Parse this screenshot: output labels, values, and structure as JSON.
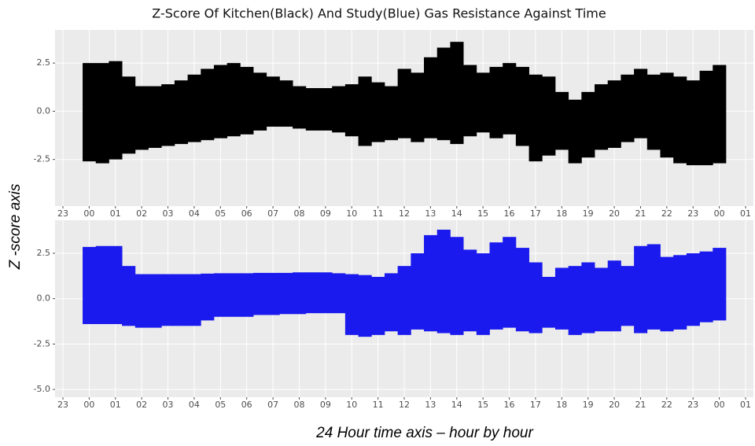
{
  "title": "Z-Score Of Kitchen(Black) And Study(Blue) Gas Resistance Against Time",
  "ylabel": "Z -score axis",
  "xlabel": "24 Hour time axis – hour by hour",
  "chart_data": [
    {
      "type": "range",
      "grid": true,
      "background": "#ebebeb",
      "x": [
        0,
        0.5,
        1,
        1.5,
        2,
        2.5,
        3,
        3.5,
        4,
        4.5,
        5,
        5.5,
        6,
        6.5,
        7,
        7.5,
        8,
        8.5,
        9,
        9.5,
        10,
        10.5,
        11,
        11.5,
        12,
        12.5,
        13,
        13.5,
        14,
        14.5,
        15,
        15.5,
        16,
        16.5,
        17,
        17.5,
        18,
        18.5,
        19,
        19.5,
        20,
        20.5,
        21,
        21.5,
        22,
        22.5,
        23,
        23.5,
        24
      ],
      "series": [
        {
          "color": "#000000",
          "values": [
            2.5,
            2.5,
            2.6,
            1.8,
            1.3,
            1.3,
            1.4,
            1.6,
            1.9,
            2.2,
            2.4,
            2.5,
            2.3,
            2.0,
            1.8,
            1.6,
            1.3,
            1.2,
            1.2,
            1.3,
            1.4,
            1.8,
            1.5,
            1.3,
            2.2,
            2.0,
            2.8,
            3.3,
            3.6,
            2.4,
            2.0,
            2.3,
            2.5,
            2.3,
            1.9,
            1.8,
            1.0,
            0.6,
            1.0,
            1.4,
            1.6,
            1.9,
            2.2,
            1.9,
            2.0,
            1.8,
            1.6,
            2.1,
            2.4
          ]
        },
        {
          "color": "#000000",
          "values": [
            -2.6,
            -2.7,
            -2.5,
            -2.2,
            -2.0,
            -1.9,
            -1.8,
            -1.7,
            -1.6,
            -1.5,
            -1.4,
            -1.3,
            -1.2,
            -1.0,
            -0.8,
            -0.8,
            -0.9,
            -1.0,
            -1.0,
            -1.1,
            -1.3,
            -1.8,
            -1.6,
            -1.5,
            -1.4,
            -1.6,
            -1.4,
            -1.5,
            -1.7,
            -1.3,
            -1.1,
            -1.4,
            -1.2,
            -1.8,
            -2.6,
            -2.3,
            -2.0,
            -2.7,
            -2.4,
            -2.0,
            -1.9,
            -1.6,
            -1.4,
            -2.0,
            -2.4,
            -2.7,
            -2.8,
            -2.8,
            -2.7
          ]
        }
      ],
      "xlim": [
        -1.3,
        25.3
      ],
      "xticks": [
        {
          "value": -1,
          "label": "23"
        },
        {
          "value": 0,
          "label": "00"
        },
        {
          "value": 1,
          "label": "01"
        },
        {
          "value": 2,
          "label": "02"
        },
        {
          "value": 3,
          "label": "03"
        },
        {
          "value": 4,
          "label": "04"
        },
        {
          "value": 5,
          "label": "05"
        },
        {
          "value": 6,
          "label": "06"
        },
        {
          "value": 7,
          "label": "07"
        },
        {
          "value": 8,
          "label": "08"
        },
        {
          "value": 9,
          "label": "09"
        },
        {
          "value": 10,
          "label": "10"
        },
        {
          "value": 11,
          "label": "11"
        },
        {
          "value": 12,
          "label": "12"
        },
        {
          "value": 13,
          "label": "13"
        },
        {
          "value": 14,
          "label": "14"
        },
        {
          "value": 15,
          "label": "15"
        },
        {
          "value": 16,
          "label": "16"
        },
        {
          "value": 17,
          "label": "17"
        },
        {
          "value": 18,
          "label": "18"
        },
        {
          "value": 19,
          "label": "19"
        },
        {
          "value": 20,
          "label": "20"
        },
        {
          "value": 21,
          "label": "21"
        },
        {
          "value": 22,
          "label": "22"
        },
        {
          "value": 23,
          "label": "23"
        },
        {
          "value": 24,
          "label": "00"
        },
        {
          "value": 25,
          "label": "01"
        }
      ],
      "ylim": [
        -4.92,
        4.22
      ],
      "yticks": [
        2.5,
        {
          "value": 0,
          "label": "0.0"
        },
        -2.5
      ]
    },
    {
      "type": "range",
      "grid": true,
      "background": "#ebebeb",
      "x": [
        0,
        0.5,
        1,
        1.5,
        2,
        2.5,
        3,
        3.5,
        4,
        4.5,
        5,
        5.5,
        6,
        6.5,
        7,
        7.5,
        8,
        8.5,
        9,
        9.5,
        10,
        10.5,
        11,
        11.5,
        12,
        12.5,
        13,
        13.5,
        14,
        14.5,
        15,
        15.5,
        16,
        16.5,
        17,
        17.5,
        18,
        18.5,
        19,
        19.5,
        20,
        20.5,
        21,
        21.5,
        22,
        22.5,
        23,
        23.5,
        24
      ],
      "series": [
        {
          "color": "#1a1aee",
          "values": [
            2.85,
            2.9,
            2.9,
            1.8,
            1.35,
            1.35,
            1.35,
            1.35,
            1.35,
            1.38,
            1.4,
            1.4,
            1.4,
            1.42,
            1.42,
            1.42,
            1.45,
            1.45,
            1.45,
            1.4,
            1.35,
            1.3,
            1.2,
            1.4,
            1.8,
            2.5,
            3.5,
            3.8,
            3.4,
            2.7,
            2.5,
            3.1,
            3.4,
            2.8,
            2.0,
            1.2,
            1.7,
            1.8,
            2.0,
            1.7,
            2.1,
            1.8,
            2.9,
            3.0,
            2.3,
            2.4,
            2.5,
            2.6,
            2.8
          ]
        },
        {
          "color": "#1a1aee",
          "values": [
            -1.4,
            -1.4,
            -1.4,
            -1.5,
            -1.6,
            -1.6,
            -1.5,
            -1.5,
            -1.5,
            -1.2,
            -1.0,
            -1.0,
            -1.0,
            -0.9,
            -0.9,
            -0.85,
            -0.85,
            -0.8,
            -0.8,
            -0.8,
            -2.0,
            -2.1,
            -2.0,
            -1.8,
            -2.0,
            -1.7,
            -1.8,
            -1.9,
            -2.0,
            -1.8,
            -2.0,
            -1.7,
            -1.6,
            -1.8,
            -1.9,
            -1.6,
            -1.7,
            -2.0,
            -1.9,
            -1.8,
            -1.8,
            -1.5,
            -1.9,
            -1.7,
            -1.8,
            -1.7,
            -1.5,
            -1.3,
            -1.2
          ]
        }
      ],
      "xlim": [
        -1.3,
        25.3
      ],
      "xticks": [
        {
          "value": -1,
          "label": "23"
        },
        {
          "value": 0,
          "label": "00"
        },
        {
          "value": 1,
          "label": "01"
        },
        {
          "value": 2,
          "label": "02"
        },
        {
          "value": 3,
          "label": "03"
        },
        {
          "value": 4,
          "label": "04"
        },
        {
          "value": 5,
          "label": "05"
        },
        {
          "value": 6,
          "label": "06"
        },
        {
          "value": 7,
          "label": "07"
        },
        {
          "value": 8,
          "label": "08"
        },
        {
          "value": 9,
          "label": "09"
        },
        {
          "value": 10,
          "label": "10"
        },
        {
          "value": 11,
          "label": "11"
        },
        {
          "value": 12,
          "label": "12"
        },
        {
          "value": 13,
          "label": "13"
        },
        {
          "value": 14,
          "label": "14"
        },
        {
          "value": 15,
          "label": "15"
        },
        {
          "value": 16,
          "label": "16"
        },
        {
          "value": 17,
          "label": "17"
        },
        {
          "value": 18,
          "label": "18"
        },
        {
          "value": 19,
          "label": "19"
        },
        {
          "value": 20,
          "label": "20"
        },
        {
          "value": 21,
          "label": "21"
        },
        {
          "value": 22,
          "label": "22"
        },
        {
          "value": 23,
          "label": "23"
        },
        {
          "value": 24,
          "label": "00"
        },
        {
          "value": 25,
          "label": "01"
        }
      ],
      "ylim": [
        -5.43,
        4.32
      ],
      "yticks": [
        2.5,
        {
          "value": 0,
          "label": "0.0"
        },
        -2.5,
        {
          "value": -5,
          "label": "-5.0"
        }
      ]
    }
  ]
}
